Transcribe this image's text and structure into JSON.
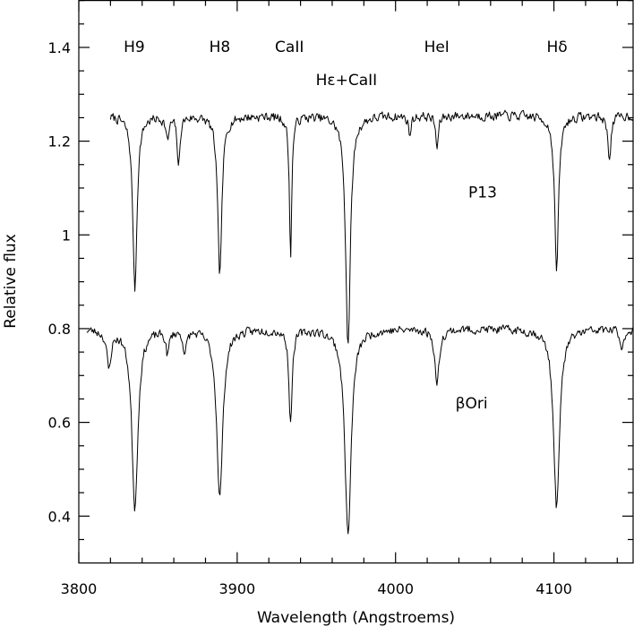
{
  "chart_data": {
    "type": "line",
    "xlabel": "Wavelength  (Angstroems)",
    "ylabel": "Relative  flux",
    "xlim": [
      3800,
      4150
    ],
    "ylim": [
      0.3,
      1.5
    ],
    "x_major_ticks": [
      3800,
      3900,
      4000,
      4100
    ],
    "x_minor_step": 20,
    "y_major_ticks": [
      0.4,
      0.6,
      0.8,
      1.0,
      1.2,
      1.4
    ],
    "y_tick_labels": [
      "0.4",
      "0.6",
      "0.8",
      "1",
      "1.2",
      "1.4"
    ],
    "y_minor_step": 0.05,
    "grid": false,
    "legend": "none",
    "line_labels": [
      {
        "text": "H9",
        "x": 3835,
        "y": 1.39
      },
      {
        "text": "H8",
        "x": 3889,
        "y": 1.39
      },
      {
        "text": "CaII",
        "x": 3933,
        "y": 1.39
      },
      {
        "text": "Hε+CaII",
        "x": 3969,
        "y": 1.32
      },
      {
        "text": "HeI",
        "x": 4026,
        "y": 1.39
      },
      {
        "text": "Hδ",
        "x": 4102,
        "y": 1.39
      }
    ],
    "series_labels": [
      {
        "text": "P13",
        "x": 4055,
        "y": 1.08
      },
      {
        "text": "βOri",
        "x": 4048,
        "y": 0.63
      }
    ],
    "series": [
      {
        "continuum": 1.255,
        "x_range": [
          3820,
          4150
        ],
        "seed": 7,
        "noise": 0.014,
        "lines": [
          {
            "center": 3835.4,
            "depth": 0.37,
            "width": 1.6
          },
          {
            "center": 3856,
            "depth": 0.05,
            "width": 1.2
          },
          {
            "center": 3863,
            "depth": 0.11,
            "width": 1.0
          },
          {
            "center": 3889.0,
            "depth": 0.34,
            "width": 1.6
          },
          {
            "center": 3933.7,
            "depth": 0.3,
            "width": 0.9
          },
          {
            "center": 3970.0,
            "depth": 0.49,
            "width": 1.8
          },
          {
            "center": 4009,
            "depth": 0.04,
            "width": 1.0
          },
          {
            "center": 4026.2,
            "depth": 0.07,
            "width": 1.0
          },
          {
            "center": 4101.7,
            "depth": 0.33,
            "width": 1.5
          },
          {
            "center": 4135,
            "depth": 0.09,
            "width": 1.2
          }
        ]
      },
      {
        "continuum": 0.8,
        "x_range": [
          3805,
          4150
        ],
        "seed": 23,
        "noise": 0.013,
        "lines": [
          {
            "center": 3819,
            "depth": 0.08,
            "width": 1.6
          },
          {
            "center": 3835.4,
            "depth": 0.38,
            "width": 2.3
          },
          {
            "center": 3856,
            "depth": 0.05,
            "width": 1.2
          },
          {
            "center": 3867,
            "depth": 0.05,
            "width": 1.2
          },
          {
            "center": 3889.0,
            "depth": 0.36,
            "width": 2.3
          },
          {
            "center": 3933.7,
            "depth": 0.2,
            "width": 1.2
          },
          {
            "center": 3970.0,
            "depth": 0.44,
            "width": 2.4
          },
          {
            "center": 4026.2,
            "depth": 0.12,
            "width": 1.6
          },
          {
            "center": 4101.7,
            "depth": 0.38,
            "width": 2.3
          },
          {
            "center": 4143,
            "depth": 0.05,
            "width": 1.2
          }
        ]
      }
    ]
  }
}
